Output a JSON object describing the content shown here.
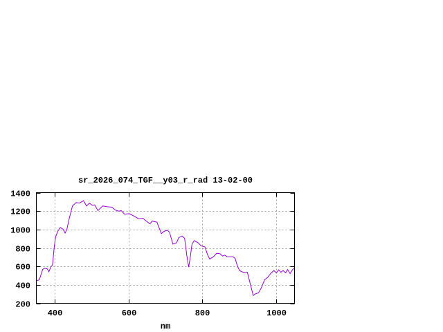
{
  "chart_data": {
    "type": "line",
    "title": "sr_2026_074_TGF__y03_r_rad 13-02-00",
    "xlabel": "nm",
    "ylabel": "",
    "xlim": [
      350,
      1050
    ],
    "ylim": [
      200,
      1400
    ],
    "xticks": [
      400,
      600,
      800,
      1000
    ],
    "yticks": [
      200,
      400,
      600,
      800,
      1000,
      1200,
      1400
    ],
    "grid": true,
    "line_color": "#9400d3",
    "series": [
      {
        "x": [
          350,
          358,
          367,
          373,
          380,
          384,
          389,
          394,
          398,
          402,
          408,
          415,
          422,
          428,
          433,
          439,
          448,
          458,
          467,
          478,
          486,
          494,
          502,
          508,
          517,
          530,
          542,
          555,
          564,
          573,
          580,
          589,
          602,
          614,
          627,
          639,
          648,
          658,
          664,
          677,
          683,
          689,
          696,
          705,
          711,
          720,
          730,
          736,
          745,
          752,
          758,
          763,
          767,
          772,
          778,
          789,
          797,
          807,
          814,
          820,
          830,
          839,
          848,
          855,
          861,
          867,
          883,
          889,
          895,
          901,
          914,
          922,
          928,
          938,
          945,
          952,
          960,
          969,
          977,
          987,
          994,
          1001,
          1007,
          1013,
          1019,
          1026,
          1031,
          1038,
          1045,
          1050
        ],
        "y": [
          442,
          455,
          567,
          580,
          572,
          542,
          592,
          617,
          792,
          917,
          980,
          1022,
          1005,
          962,
          1005,
          1117,
          1255,
          1292,
          1287,
          1312,
          1255,
          1285,
          1262,
          1267,
          1205,
          1255,
          1247,
          1242,
          1212,
          1200,
          1205,
          1167,
          1172,
          1147,
          1117,
          1122,
          1092,
          1062,
          1092,
          1080,
          1017,
          955,
          980,
          992,
          972,
          842,
          855,
          912,
          930,
          905,
          717,
          592,
          692,
          842,
          880,
          855,
          822,
          812,
          730,
          680,
          705,
          742,
          737,
          712,
          722,
          705,
          705,
          687,
          605,
          555,
          530,
          537,
          442,
          285,
          305,
          312,
          367,
          455,
          480,
          530,
          555,
          530,
          562,
          537,
          555,
          530,
          567,
          522,
          567,
          580
        ]
      }
    ]
  }
}
